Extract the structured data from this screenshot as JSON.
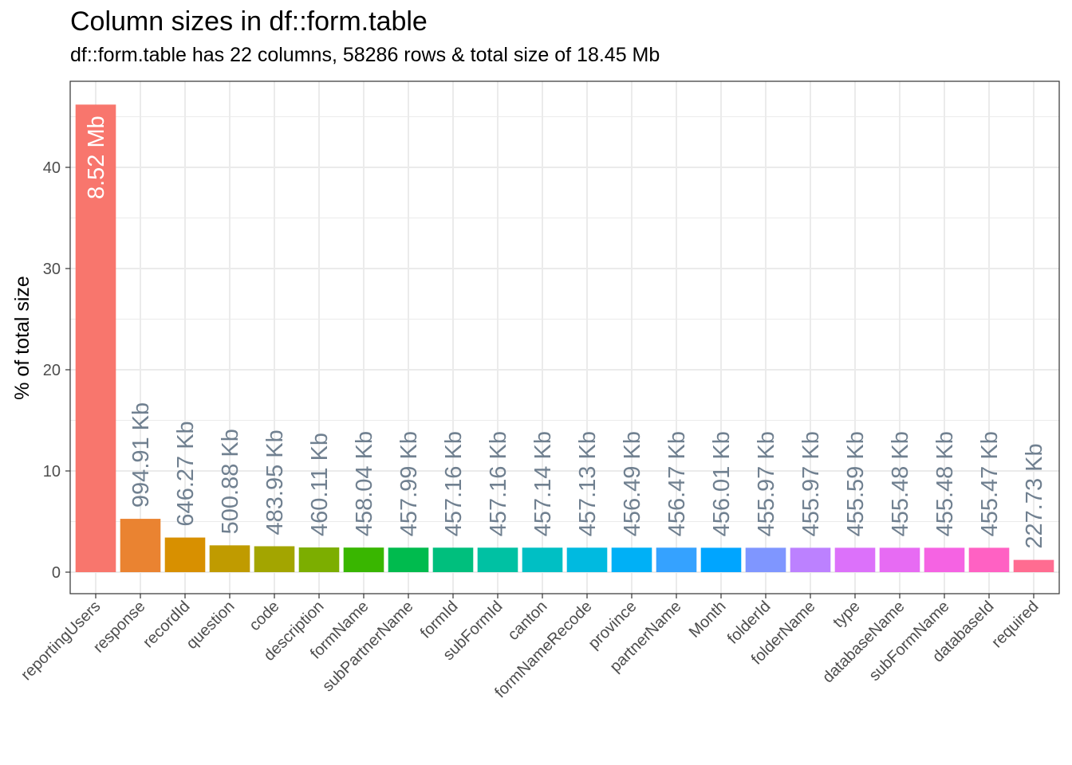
{
  "chart_data": {
    "type": "bar",
    "title": "Column sizes in df::form.table",
    "subtitle": "df::form.table has 22 columns, 58286 rows & total size of 18.45 Mb",
    "xlabel": "",
    "ylabel": "% of total size",
    "ylim": [
      0,
      47
    ],
    "yticks": [
      0,
      10,
      20,
      30,
      40
    ],
    "grid": true,
    "legend": "none",
    "categories": [
      "reportingUsers",
      "response",
      "recordId",
      "question",
      "code",
      "description",
      "formName",
      "subPartnerName",
      "formId",
      "subFormId",
      "canton",
      "formNameRecode",
      "province",
      "partnerName",
      "Month",
      "folderId",
      "folderName",
      "type",
      "databaseName",
      "subFormName",
      "databaseId",
      "required"
    ],
    "values": [
      46.2,
      5.27,
      3.42,
      2.65,
      2.56,
      2.44,
      2.43,
      2.42,
      2.42,
      2.42,
      2.42,
      2.42,
      2.42,
      2.42,
      2.41,
      2.41,
      2.41,
      2.41,
      2.41,
      2.41,
      2.41,
      1.21
    ],
    "labels": [
      "8.52 Mb",
      "994.91 Kb",
      "646.27 Kb",
      "500.88 Kb",
      "483.95 Kb",
      "460.11 Kb",
      "458.04 Kb",
      "457.99 Kb",
      "457.16 Kb",
      "457.16 Kb",
      "457.14 Kb",
      "457.13 Kb",
      "456.49 Kb",
      "456.47 Kb",
      "456.01 Kb",
      "455.97 Kb",
      "455.97 Kb",
      "455.59 Kb",
      "455.48 Kb",
      "455.48 Kb",
      "455.47 Kb",
      "227.73 Kb"
    ],
    "colors": [
      "#F8766D",
      "#EA8331",
      "#D89000",
      "#C09B00",
      "#A3A500",
      "#7CAE00",
      "#39B600",
      "#00BB4E",
      "#00BF7D",
      "#00C1A3",
      "#00BFC4",
      "#00BAE0",
      "#00B0F6",
      "#35A2FF",
      "#00A5FF",
      "#7F96FF",
      "#BC81FF",
      "#DC71FA",
      "#E76BF3",
      "#F563E3",
      "#FF61C3",
      "#FF6C91"
    ],
    "label_color": "#708090",
    "first_label_color": "#ffffff"
  }
}
